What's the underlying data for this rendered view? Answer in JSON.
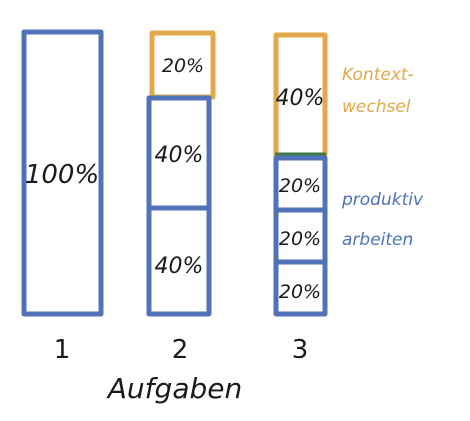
{
  "colors": {
    "blue": "#4f72b8",
    "orange": "#e3a84a",
    "green": "#3e7a45",
    "ink": "#1a1a1a"
  },
  "columns": [
    {
      "label": "1",
      "segments": [
        {
          "text": "100%",
          "fraction": 1.0,
          "kind": "productive"
        }
      ]
    },
    {
      "label": "2",
      "segments": [
        {
          "text": "20%",
          "fraction": 0.2,
          "kind": "context"
        },
        {
          "text": "40%",
          "fraction": 0.4,
          "kind": "productive"
        },
        {
          "text": "40%",
          "fraction": 0.4,
          "kind": "productive"
        }
      ]
    },
    {
      "label": "3",
      "segments": [
        {
          "text": "40%",
          "fraction": 0.4,
          "kind": "context"
        },
        {
          "text": "20%",
          "fraction": 0.2,
          "kind": "productive"
        },
        {
          "text": "20%",
          "fraction": 0.2,
          "kind": "productive"
        },
        {
          "text": "20%",
          "fraction": 0.2,
          "kind": "productive"
        }
      ]
    }
  ],
  "legend": {
    "context_line1": "Kontext-",
    "context_line2": "wechsel",
    "productive_line1": "produktiv",
    "productive_line2": "arbeiten"
  },
  "axis_label": "Aufgaben"
}
